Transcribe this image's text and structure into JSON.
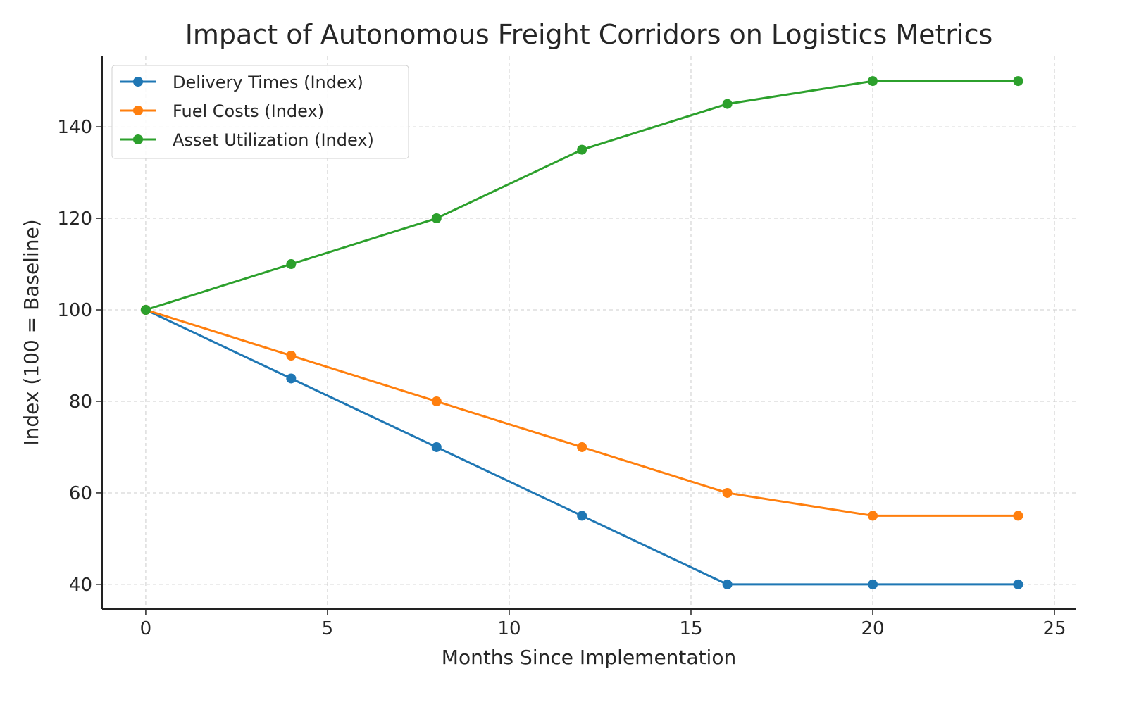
{
  "chart_data": {
    "type": "line",
    "title": "Impact of Autonomous Freight Corridors on Logistics Metrics",
    "xlabel": "Months Since Implementation",
    "ylabel": "Index (100 = Baseline)",
    "x": [
      0,
      4,
      8,
      12,
      16,
      20,
      24
    ],
    "series": [
      {
        "name": "Delivery Times (Index)",
        "color": "#1f77b4",
        "values": [
          100,
          85,
          70,
          55,
          40,
          40,
          40
        ]
      },
      {
        "name": "Fuel Costs (Index)",
        "color": "#ff7f0e",
        "values": [
          100,
          90,
          80,
          70,
          60,
          55,
          55
        ]
      },
      {
        "name": "Asset Utilization (Index)",
        "color": "#2ca02c",
        "values": [
          100,
          110,
          120,
          135,
          145,
          150,
          150
        ]
      }
    ],
    "xlim": [
      -1.2,
      25.6
    ],
    "ylim": [
      34.6,
      155.4
    ],
    "xticks": [
      0,
      5,
      10,
      15,
      20,
      25
    ],
    "yticks": [
      40,
      60,
      80,
      100,
      120,
      140
    ],
    "grid": true,
    "legend_position": "top-left"
  }
}
